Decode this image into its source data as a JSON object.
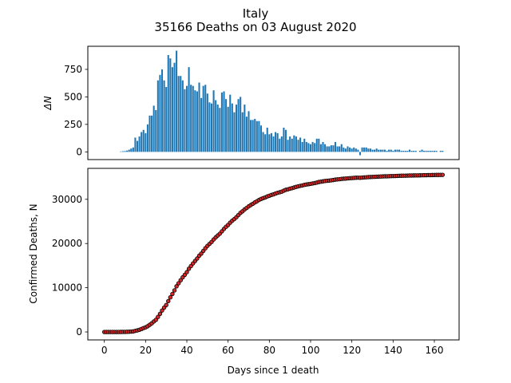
{
  "figure": {
    "title_line1": "Italy",
    "title_line2": "35166 Deaths on 03 August 2020"
  },
  "colors": {
    "bar": "#1f77b4",
    "line": "#d62728",
    "marker": "#000000"
  },
  "chart_data": [
    {
      "type": "bar",
      "ylabel": "ΔN",
      "xlim": [
        -8,
        172
      ],
      "ylim": [
        -70,
        960
      ],
      "yticks": [
        0,
        250,
        500,
        750
      ],
      "x_tick_labels_shown": false,
      "x_start": 0,
      "values": [
        0,
        0,
        0,
        0,
        0,
        0,
        0,
        0,
        4,
        6,
        8,
        12,
        20,
        30,
        40,
        130,
        100,
        140,
        180,
        200,
        170,
        250,
        330,
        330,
        420,
        380,
        650,
        700,
        750,
        650,
        590,
        880,
        850,
        770,
        810,
        920,
        690,
        690,
        650,
        570,
        600,
        770,
        610,
        600,
        560,
        550,
        630,
        490,
        600,
        610,
        530,
        450,
        440,
        560,
        470,
        430,
        400,
        540,
        550,
        480,
        410,
        520,
        440,
        360,
        430,
        480,
        500,
        360,
        430,
        320,
        370,
        290,
        290,
        300,
        280,
        280,
        240,
        180,
        160,
        220,
        160,
        170,
        140,
        180,
        170,
        120,
        140,
        220,
        200,
        110,
        140,
        120,
        150,
        140,
        110,
        130,
        90,
        120,
        90,
        80,
        70,
        90,
        80,
        120,
        120,
        70,
        90,
        70,
        50,
        50,
        60,
        60,
        90,
        50,
        50,
        70,
        40,
        30,
        50,
        40,
        30,
        40,
        30,
        20,
        -30,
        40,
        40,
        40,
        30,
        30,
        20,
        20,
        30,
        20,
        20,
        20,
        20,
        10,
        20,
        20,
        10,
        20,
        20,
        20,
        10,
        10,
        10,
        10,
        20,
        10,
        10,
        10,
        0,
        10,
        20,
        10,
        10,
        10,
        10,
        10,
        10,
        10,
        0,
        10,
        10
      ]
    },
    {
      "type": "line",
      "xlabel": "Days since 1 death",
      "ylabel": "Confirmed Deaths, N",
      "xlim": [
        -8,
        172
      ],
      "ylim": [
        -1800,
        37000
      ],
      "xticks": [
        0,
        20,
        40,
        60,
        80,
        100,
        120,
        140,
        160
      ],
      "yticks": [
        0,
        10000,
        20000,
        30000
      ],
      "x_start": 0,
      "final_value": 35166,
      "marker": "circle",
      "line_style": "solid"
    }
  ]
}
